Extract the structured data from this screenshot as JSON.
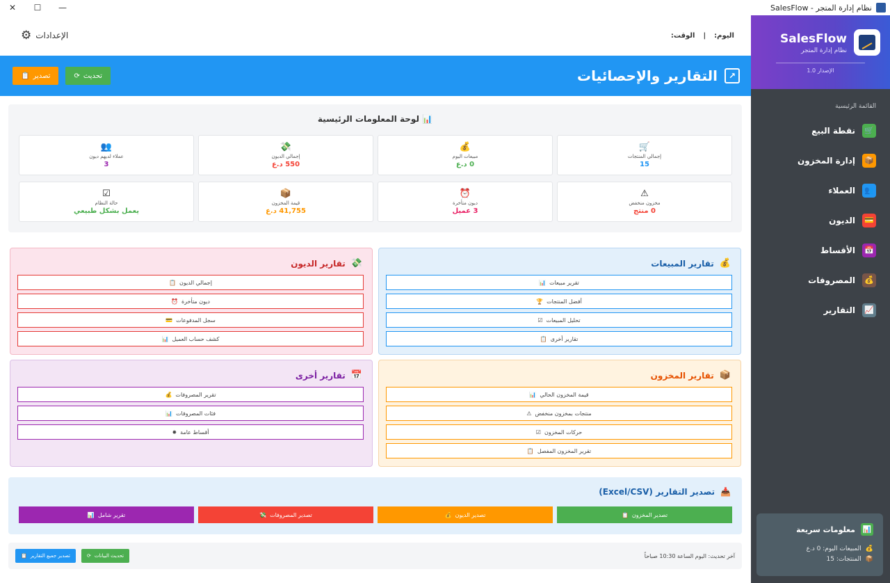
{
  "window": {
    "title": "SalesFlow - نظام إدارة المتجر",
    "close": "✕",
    "maximize": "☐",
    "minimize": "—"
  },
  "sidebar": {
    "brand_name": "SalesFlow",
    "brand_sub": "نظام إدارة المتجر",
    "version": "الإصدار 1.0",
    "menu_title": "القائمة الرئيسية",
    "items": [
      {
        "label": "نقطة البيع",
        "icon": "🛒",
        "color": "#4caf50"
      },
      {
        "label": "إدارة المخزون",
        "icon": "📦",
        "color": "#ff9800"
      },
      {
        "label": "العملاء",
        "icon": "👥",
        "color": "#2196f3"
      },
      {
        "label": "الديون",
        "icon": "💳",
        "color": "#f44336"
      },
      {
        "label": "الأقساط",
        "icon": "📅",
        "color": "#9c27b0"
      },
      {
        "label": "المصروفات",
        "icon": "💰",
        "color": "#795548"
      },
      {
        "label": "التقارير",
        "icon": "📈",
        "color": "#607d8b"
      }
    ],
    "quick": {
      "title": "معلومات سريعة",
      "sales_today": "المبيعات اليوم: 0 د.ع",
      "products": "المنتجات: 15"
    }
  },
  "topbar": {
    "day_label": "اليوم:",
    "sep": "|",
    "time_label": "الوقت:",
    "settings_label": "الإعدادات"
  },
  "header": {
    "title": "التقارير والإحصائيات",
    "refresh_label": "تحديث",
    "export_label": "تصدير"
  },
  "dashboard": {
    "title": "لوحة المعلومات الرئيسية",
    "cards": [
      {
        "label": "إجمالي المنتجات",
        "value": "15",
        "icon": "🛒",
        "color": "#2196f3"
      },
      {
        "label": "مبيعات اليوم",
        "value": "0 د.ع",
        "icon": "💰",
        "color": "#4caf50"
      },
      {
        "label": "إجمالي الديون",
        "value": "550 د.ع",
        "icon": "💸",
        "color": "#f44336"
      },
      {
        "label": "عملاء لديهم ديون",
        "value": "3",
        "icon": "👥",
        "color": "#9c27b0"
      },
      {
        "label": "مخزون منخفض",
        "value": "0 منتج",
        "icon": "⚠",
        "color": "#f44336"
      },
      {
        "label": "ديون متأخرة",
        "value": "3 عميل",
        "icon": "⏰",
        "color": "#e91e63"
      },
      {
        "label": "قيمة المخزون",
        "value": "41,755 د.ع",
        "icon": "📦",
        "color": "#ff9800"
      },
      {
        "label": "حالة النظام",
        "value": "يعمل بشكل طبيعي",
        "icon": "☑",
        "color": "#4caf50"
      }
    ]
  },
  "panels": {
    "sales": {
      "title": "تقارير المبيعات",
      "icon": "💰",
      "items": [
        {
          "label": "تقرير مبيعات",
          "icon": "📊"
        },
        {
          "label": "أفضل المنتجات",
          "icon": "🏆"
        },
        {
          "label": "تحليل المبيعات",
          "icon": "☑"
        },
        {
          "label": "تقارير أخرى",
          "icon": "📋"
        }
      ]
    },
    "debts": {
      "title": "تقارير الديون",
      "icon": "💸",
      "items": [
        {
          "label": "إجمالي الديون",
          "icon": "📋"
        },
        {
          "label": "ديون متأخرة",
          "icon": "⏰"
        },
        {
          "label": "سجل المدفوعات",
          "icon": "💳"
        },
        {
          "label": "كشف حساب العميل",
          "icon": "📊"
        }
      ]
    },
    "inventory": {
      "title": "تقارير المخزون",
      "icon": "📦",
      "items": [
        {
          "label": "قيمة المخزون الحالي",
          "icon": "📊"
        },
        {
          "label": "منتجات بمخزون منخفض",
          "icon": "⚠"
        },
        {
          "label": "حركات المخزون",
          "icon": "☑"
        },
        {
          "label": "تقرير المخزون المفصل",
          "icon": "📋"
        }
      ]
    },
    "other": {
      "title": "تقارير أخرى",
      "icon": "📅",
      "items": [
        {
          "label": "تقرير المصروفات",
          "icon": "💰"
        },
        {
          "label": "فئات المصروفات",
          "icon": "📊"
        },
        {
          "label": "أقساط عامة",
          "icon": "✸"
        }
      ]
    }
  },
  "export": {
    "title": "تصدير التقارير (Excel/CSV)",
    "buttons": [
      {
        "label": "تصدير المخزون",
        "icon": "📋",
        "color": "#4caf50"
      },
      {
        "label": "تصدير الديون",
        "icon": "💰",
        "color": "#ff9800"
      },
      {
        "label": "تصدير المصروفات",
        "icon": "💸",
        "color": "#f44336"
      },
      {
        "label": "تقرير شامل",
        "icon": "📊",
        "color": "#9c27b0"
      }
    ]
  },
  "footer": {
    "last_update": "آخر تحديث: اليوم الساعة 10:30 صباحاً",
    "refresh_data_label": "تحديث البيانات",
    "export_all_label": "تصدير جميع التقارير"
  }
}
